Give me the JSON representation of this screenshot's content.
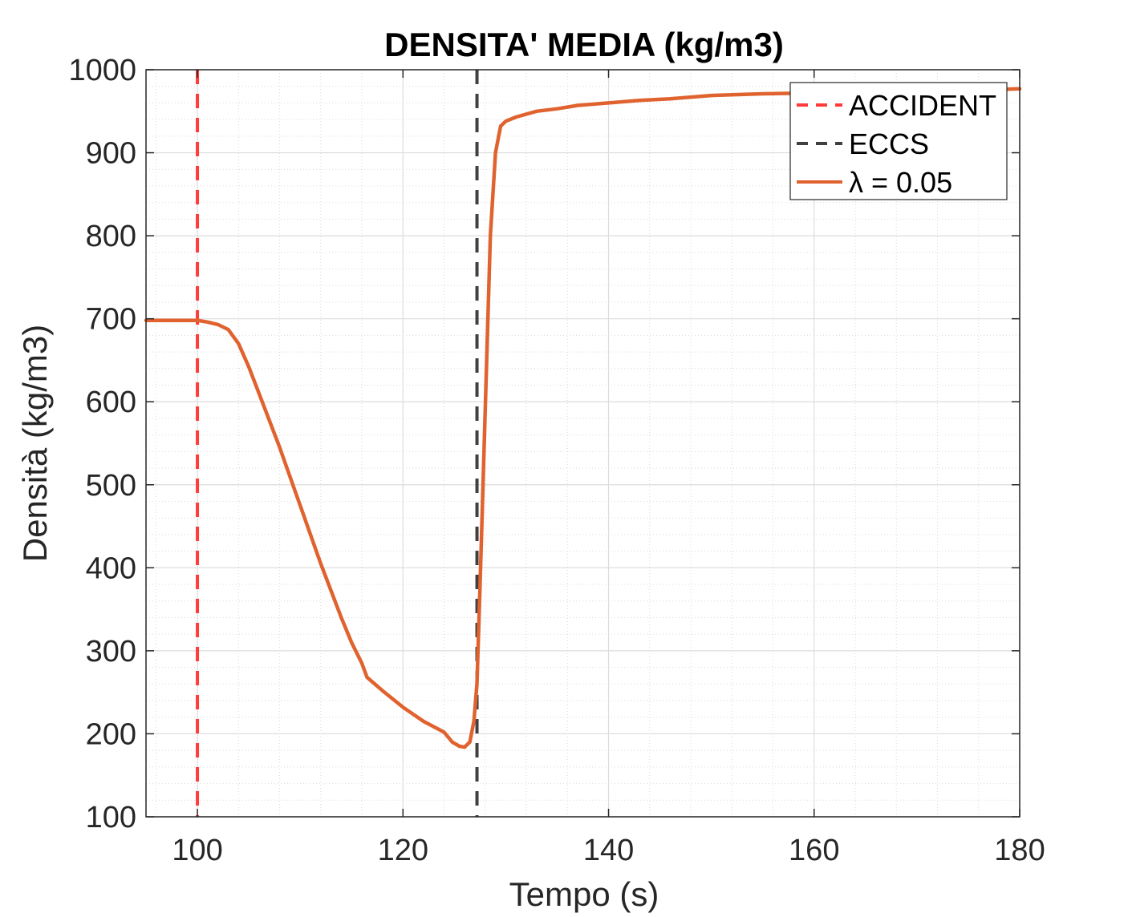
{
  "chart_data": {
    "type": "line",
    "title": "DENSITA' MEDIA (kg/m3)",
    "xlabel": "Tempo (s)",
    "ylabel": "Densità (kg/m3)",
    "xlim": [
      95,
      180
    ],
    "ylim": [
      100,
      1000
    ],
    "xticks": [
      100,
      120,
      140,
      160,
      180
    ],
    "yticks": [
      100,
      200,
      300,
      400,
      500,
      600,
      700,
      800,
      900,
      1000
    ],
    "x_tick_labels": [
      "100",
      "120",
      "140",
      "160",
      "180"
    ],
    "y_tick_labels": [
      "100",
      "200",
      "300",
      "400",
      "500",
      "600",
      "700",
      "800",
      "900",
      "1000"
    ],
    "grid": true,
    "minor_grid": true,
    "legend_position": "top-right",
    "vertical_lines": [
      {
        "name": "ACCIDENT",
        "x": 100,
        "color": "#ff3b3b",
        "style": "dashed"
      },
      {
        "name": "ECCS",
        "x": 127.2,
        "color": "#404040",
        "style": "dashed"
      }
    ],
    "series": [
      {
        "name": "λ = 0.05",
        "color": "#e0632f",
        "x": [
          95,
          100,
          101,
          102,
          103,
          104,
          105,
          106,
          108,
          110,
          112,
          114,
          115,
          116,
          116.5,
          118,
          120,
          122,
          124,
          124.8,
          125.5,
          126,
          126.5,
          126.9,
          127.2,
          127.5,
          128,
          128.5,
          129,
          129.5,
          130,
          131,
          133,
          135,
          137,
          140,
          143,
          146,
          150,
          155,
          160,
          165,
          170,
          175,
          180
        ],
        "values": [
          698,
          698,
          696,
          693,
          687,
          670,
          642,
          610,
          545,
          475,
          405,
          340,
          310,
          285,
          268,
          252,
          232,
          215,
          202,
          190,
          185,
          184,
          190,
          215,
          260,
          380,
          590,
          800,
          900,
          932,
          938,
          943,
          950,
          953,
          957,
          960,
          963,
          965,
          969,
          971,
          972,
          973,
          974,
          975,
          977
        ]
      }
    ]
  },
  "legend": {
    "items": [
      {
        "label": "ACCIDENT",
        "color": "#ff3b3b",
        "style": "dashed"
      },
      {
        "label": "ECCS",
        "color": "#404040",
        "style": "dashed"
      },
      {
        "label": "λ = 0.05",
        "color": "#e0632f",
        "style": "solid"
      }
    ]
  }
}
